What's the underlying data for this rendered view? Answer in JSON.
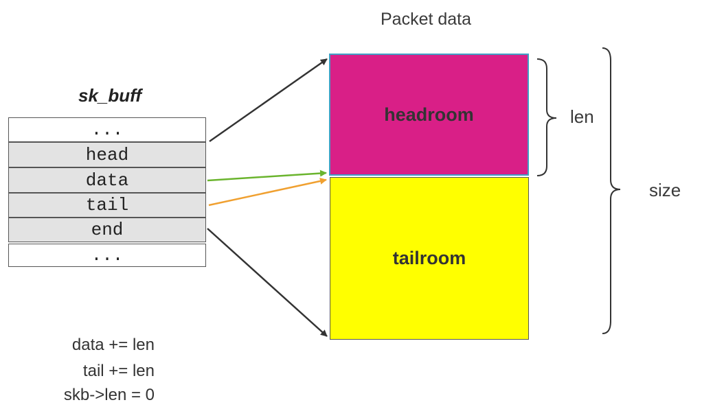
{
  "title": "Packet data",
  "struct": {
    "name": "sk_buff",
    "fields": [
      "...",
      "head",
      "data",
      "tail",
      "end",
      "..."
    ]
  },
  "buffer": {
    "headroom_label": "headroom",
    "tailroom_label": "tailroom",
    "headroom_color": "#d91f87",
    "tailroom_color": "#ffff00",
    "len_label": "len",
    "size_label": "size"
  },
  "arrows": {
    "head_color": "#333333",
    "data_color": "#6ab42d",
    "tail_color": "#f0a030",
    "end_color": "#333333"
  },
  "notes": [
    "data += len",
    "tail += len",
    "skb->len = 0"
  ]
}
